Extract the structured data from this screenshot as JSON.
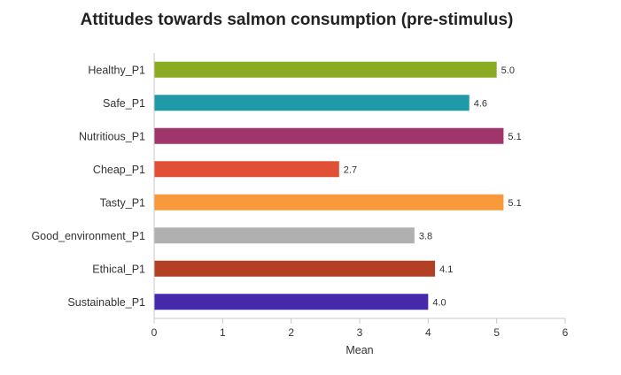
{
  "chart_data": {
    "type": "bar",
    "orientation": "horizontal",
    "title": "Attitudes towards salmon consumption (pre-stimulus)",
    "xlabel": "Mean",
    "ylabel": "",
    "xlim": [
      0,
      6
    ],
    "xticks": [
      "0",
      "1",
      "2",
      "3",
      "4",
      "5",
      "6"
    ],
    "grid": false,
    "legend": "none",
    "categories": [
      "Healthy_P1",
      "Safe_P1",
      "Nutritious_P1",
      "Cheap_P1",
      "Tasty_P1",
      "Good_environment_P1",
      "Ethical_P1",
      "Sustainable_P1"
    ],
    "values": [
      5.0,
      4.6,
      5.1,
      2.7,
      5.1,
      3.8,
      4.1,
      4.0
    ],
    "value_labels": [
      "5.0",
      "4.6",
      "5.1",
      "2.7",
      "5.1",
      "3.8",
      "4.1",
      "4.0"
    ],
    "colors": [
      "#8aab22",
      "#219aa8",
      "#a0356c",
      "#e14f35",
      "#f89a3c",
      "#b0b0b0",
      "#b33f24",
      "#4628ab"
    ]
  }
}
